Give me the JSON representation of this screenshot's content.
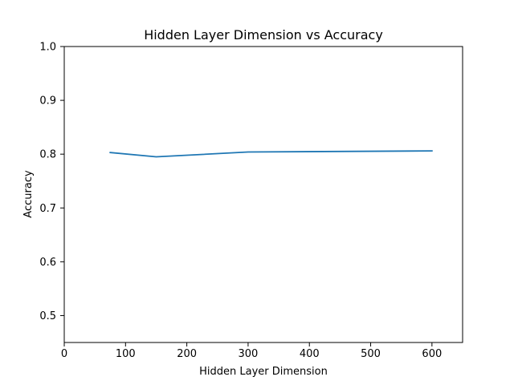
{
  "chart_data": {
    "type": "line",
    "title": "Hidden Layer Dimension vs Accuracy",
    "xlabel": "Hidden Layer Dimension",
    "ylabel": "Accuracy",
    "xlim": [
      0,
      650
    ],
    "ylim": [
      0.45,
      1.0
    ],
    "xticks": [
      0,
      100,
      200,
      300,
      400,
      500,
      600
    ],
    "yticks": [
      0.5,
      0.6,
      0.7,
      0.8,
      0.9,
      1.0
    ],
    "grid": false,
    "series": [
      {
        "color": "#1f77b4",
        "x": [
          75,
          150,
          300,
          600
        ],
        "y": [
          0.803,
          0.795,
          0.804,
          0.806
        ]
      }
    ]
  }
}
